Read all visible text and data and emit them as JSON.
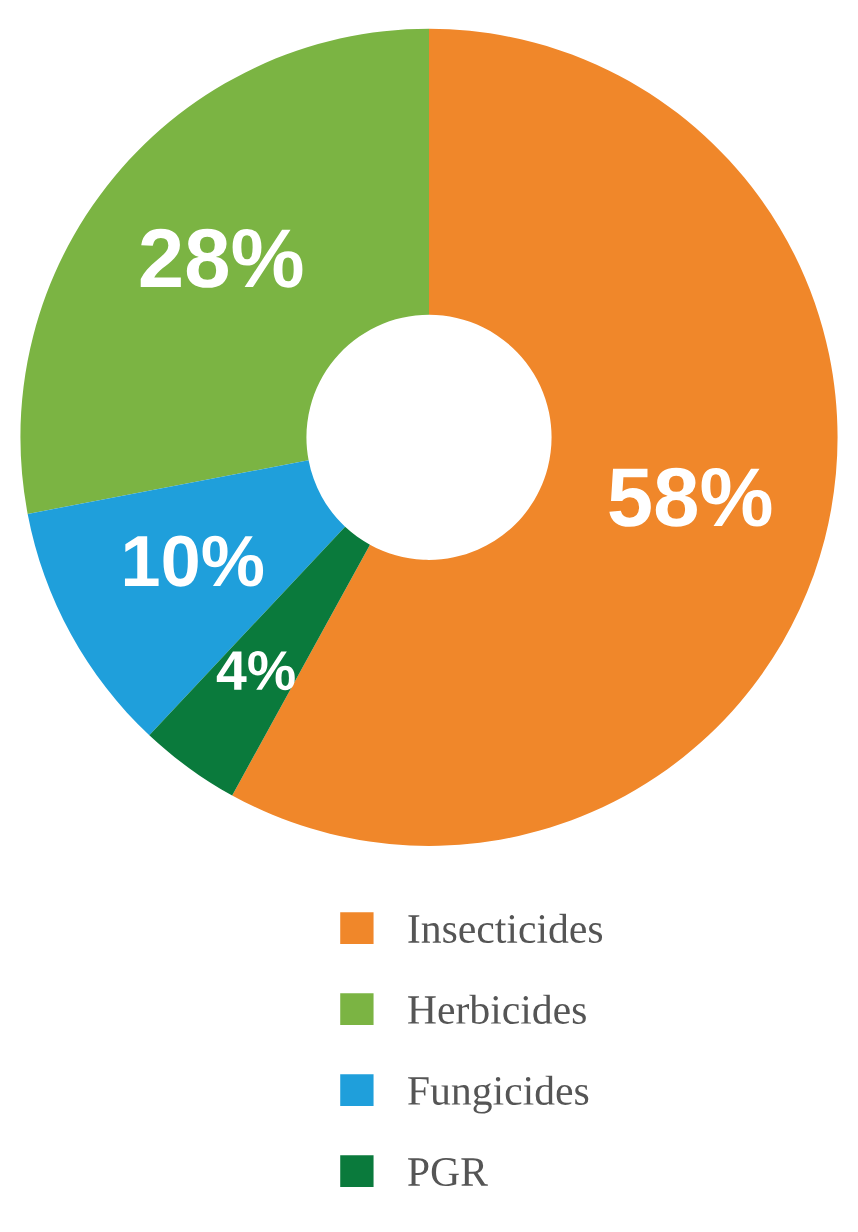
{
  "chart_data": {
    "type": "donut",
    "categories": [
      "Insecticides",
      "Herbicides",
      "Fungicides",
      "PGR"
    ],
    "values": [
      58,
      28,
      10,
      4
    ],
    "colors": [
      "#f0872a",
      "#7bb443",
      "#1f9fdb",
      "#0a7a3c"
    ],
    "value_labels": [
      "58%",
      "28%",
      "10%",
      "4%"
    ],
    "legend": "bottom"
  }
}
